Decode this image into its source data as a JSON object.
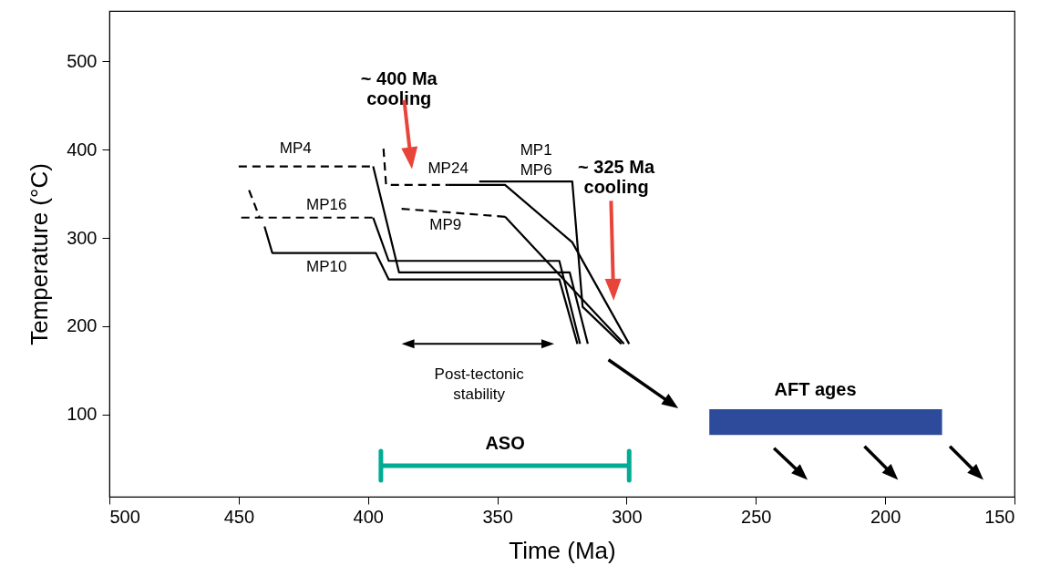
{
  "chart_data": {
    "type": "line",
    "xlabel": "Time (Ma)",
    "ylabel": "Temperature (°C)",
    "xlim": [
      500,
      150
    ],
    "xticks": [
      500,
      450,
      400,
      350,
      300,
      250,
      200,
      150
    ],
    "ylim": [
      7,
      557
    ],
    "yticks": [
      100,
      200,
      300,
      400,
      500
    ],
    "grid": false,
    "series": [
      {
        "color": "#000000",
        "line_style": "dashed",
        "x": [
          450,
          398
        ],
        "values": [
          381,
          381
        ]
      },
      {
        "color": "#000000",
        "line_style": "solid",
        "x": [
          398,
          388,
          322,
          315
        ],
        "values": [
          381,
          261,
          261,
          180
        ]
      },
      {
        "color": "#000000",
        "line_style": "dashed",
        "x": [
          449,
          398
        ],
        "values": [
          323,
          323
        ]
      },
      {
        "color": "#000000",
        "line_style": "solid",
        "x": [
          398,
          392,
          326,
          318
        ],
        "values": [
          323,
          274,
          274,
          180
        ]
      },
      {
        "color": "#000000",
        "line_style": "dashed",
        "x": [
          446,
          442
        ],
        "values": [
          354,
          324
        ]
      },
      {
        "color": "#000000",
        "line_style": "solid",
        "x": [
          440,
          437,
          397,
          392,
          326,
          319
        ],
        "values": [
          313,
          283,
          283,
          253,
          253,
          180
        ]
      },
      {
        "color": "#000000",
        "line_style": "dashed",
        "x": [
          394,
          393,
          369
        ],
        "values": [
          401,
          360,
          360
        ]
      },
      {
        "color": "#000000",
        "line_style": "solid",
        "x": [
          369,
          347,
          321,
          299
        ],
        "values": [
          360,
          360,
          295,
          180
        ]
      },
      {
        "color": "#000000",
        "line_style": "dashed",
        "x": [
          387,
          347
        ],
        "values": [
          333,
          324
        ]
      },
      {
        "color": "#000000",
        "line_style": "solid",
        "x": [
          347,
          301
        ],
        "values": [
          324,
          180
        ]
      },
      {
        "color": "#000000",
        "line_style": "solid",
        "x": [
          357,
          321,
          317,
          302
        ],
        "values": [
          364,
          364,
          222,
          180
        ]
      },
      {
        "color": "#2e4a9a",
        "line_style": "solid",
        "x": [
          268,
          178
        ],
        "values": [
          null,
          null
        ],
        "lower": [
          77,
          77
        ],
        "upper": [
          106,
          106
        ]
      },
      {
        "color": "#00ac94",
        "line_style": "solid",
        "x": [
          395,
          299
        ],
        "values": [
          42,
          42
        ]
      }
    ],
    "annotations": [
      "~ 400 Ma\ncooling",
      "~ 325 Ma\ncooling",
      "AFT ages",
      "ASO",
      "MP4",
      "MP24",
      "MP1",
      "MP6",
      "MP16",
      "MP9",
      "MP10",
      "Post-tectonic\nstability"
    ]
  }
}
